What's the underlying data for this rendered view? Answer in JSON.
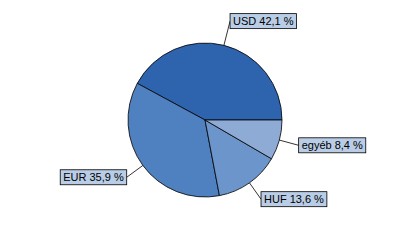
{
  "chart_data": {
    "type": "pie",
    "categories": [
      "USD",
      "EUR",
      "HUF",
      "egyéb"
    ],
    "values": [
      42.1,
      35.9,
      13.6,
      8.4
    ],
    "value_labels": [
      "42,1 %",
      "35,9 %",
      "13,6 %",
      "8,4 %"
    ],
    "colors": [
      "#2e64ad",
      "#4f80bf",
      "#6c95cc",
      "#8eabd6"
    ],
    "data_labels": true
  }
}
